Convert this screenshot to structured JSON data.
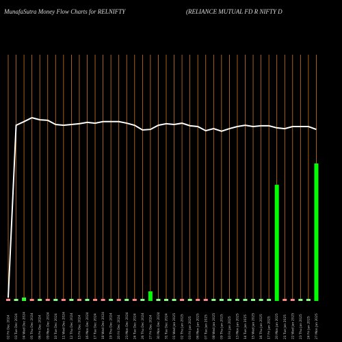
{
  "chart_data": {
    "type": "bar",
    "title": "MunafaSutra  Money Flow  Charts for RELNIFTY",
    "subtitle": "(RELIANCE MUTUAL  FD R NIFTY D",
    "categories": [
      "02 Fri Dec 2024",
      "03 Tue Dec 2024",
      "04 Wed Dec 2024",
      "05 Thu Dec 2024",
      "06 Fri Dec 2024",
      "09 Mon Dec 2024",
      "10 Tue Dec 2024",
      "11 Wed Dec 2024",
      "12 Thu Dec 2024",
      "13 Fri Dec 2024",
      "16 Mon Dec 2024",
      "17 Tue Dec 2024",
      "18 Wed Dec 2024",
      "19 Thu Dec 2024",
      "20 Fri Dec 2024",
      "23 Mon Dec 2024",
      "24 Tue Dec 2024",
      "26 Thu Dec 2024",
      "27 Fri Dec 2024",
      "30 Mon Dec 2024",
      "31 Tue Dec 2024",
      "01 Wed Jan 2025",
      "02 Thu Jan 2025",
      "03 Fri Jan 2025",
      "06 Mon Jan 2025",
      "07 Tue Jan 2025",
      "08 Wed Jan 2025",
      "09 Thu Jan 2025",
      "10 Fri Jan 2025",
      "13 Mon Jan 2025",
      "14 Tue Jan 2025",
      "15 Wed Jan 2025",
      "16 Thu Jan 2025",
      "17 Fri Jan 2025",
      "20 Mon Jan 2025",
      "21 Tue Jan 2025",
      "22 Wed Jan 2025",
      "23 Thu Jan 2025",
      "24 Fri Jan 2025",
      "27 Mon Jan 2025"
    ],
    "ylim": [
      0,
      100
    ],
    "grid_color": "#d2791f",
    "series": [
      {
        "type": "bar",
        "values": [
          0.8,
          0.8,
          1.3,
          0.8,
          0.8,
          0.8,
          0.8,
          0.8,
          0.8,
          0.8,
          0.8,
          0.8,
          0.8,
          0.8,
          0.8,
          0.8,
          0.8,
          0.8,
          3.7,
          0.8,
          0.8,
          0.8,
          0.8,
          0.8,
          0.8,
          0.8,
          0.8,
          0.8,
          0.8,
          0.8,
          0.8,
          0.8,
          0.8,
          0.8,
          44.7,
          0.8,
          0.8,
          0.8,
          0.8,
          52.9
        ],
        "colors": [
          "#f88",
          "#8f8",
          "#3f3",
          "#f88",
          "#8f8",
          "#f88",
          "#8f8",
          "#f88",
          "#8f8",
          "#f88",
          "#8f8",
          "#f88",
          "#f88",
          "#8f8",
          "#f88",
          "#8f8",
          "#f88",
          "#8f8",
          "#0f0",
          "#8f8",
          "#8f8",
          "#8f8",
          "#f88",
          "#8f8",
          "#f88",
          "#f88",
          "#8f8",
          "#8f8",
          "#8f8",
          "#8f8",
          "#8f8",
          "#8f8",
          "#8f8",
          "#8f8",
          "#0f0",
          "#f88",
          "#f88",
          "#8f8",
          "#8f8",
          "#0f0"
        ]
      },
      {
        "type": "line",
        "color": "#ffffff",
        "values": [
          1.3,
          67.6,
          69,
          70.5,
          69.7,
          69.5,
          67.9,
          67.6,
          67.9,
          68.2,
          68.7,
          68.4,
          69,
          69,
          69,
          68.4,
          67.6,
          65.8,
          66,
          67.6,
          68.2,
          67.9,
          68.4,
          67.4,
          67.1,
          65.5,
          66.3,
          65.3,
          66.3,
          67.1,
          67.6,
          67.1,
          67.4,
          67.4,
          66.6,
          66.3,
          67.1,
          67.1,
          67.1,
          66
        ]
      }
    ]
  }
}
